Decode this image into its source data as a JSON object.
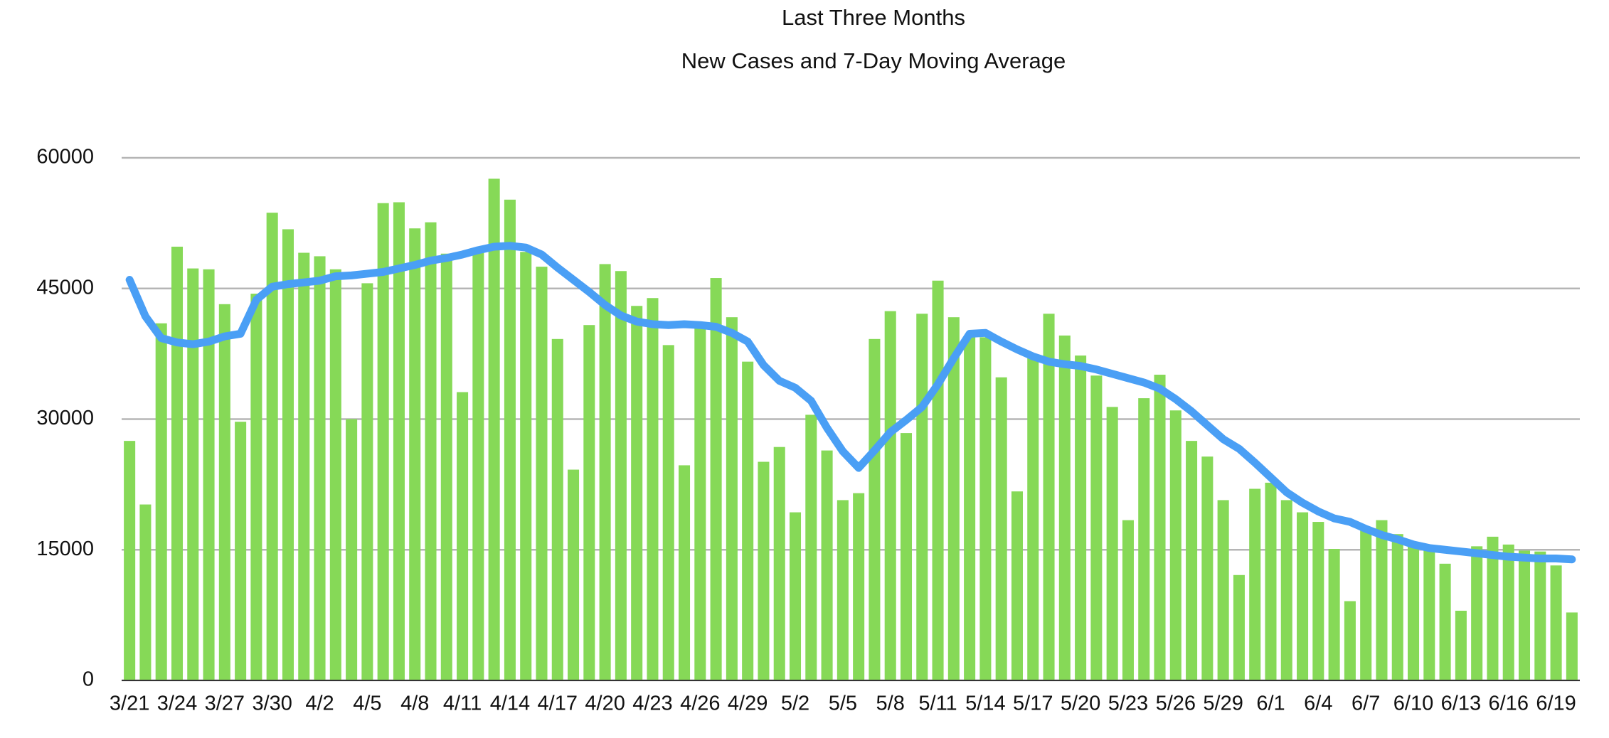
{
  "chart_data": {
    "type": "bar",
    "title": "Last Three Months",
    "subtitle": "New Cases and 7-Day Moving Average",
    "categories": [
      "3/21",
      null,
      null,
      "3/24",
      null,
      null,
      "3/27",
      null,
      null,
      "3/30",
      null,
      null,
      "4/2",
      null,
      null,
      "4/5",
      null,
      null,
      "4/8",
      null,
      null,
      "4/11",
      null,
      null,
      "4/14",
      null,
      null,
      "4/17",
      null,
      null,
      "4/20",
      null,
      null,
      "4/23",
      null,
      null,
      "4/26",
      null,
      null,
      "4/29",
      null,
      null,
      "5/2",
      null,
      null,
      "5/5",
      null,
      null,
      "5/8",
      null,
      null,
      "5/11",
      null,
      null,
      "5/14",
      null,
      null,
      "5/17",
      null,
      null,
      "5/20",
      null,
      null,
      "5/23",
      null,
      null,
      "5/26",
      null,
      null,
      "5/29",
      null,
      null,
      "6/1",
      null,
      null,
      "6/4",
      null,
      null,
      "6/7",
      null,
      null,
      "6/10",
      null,
      null,
      "6/13",
      null,
      null,
      "6/16",
      null,
      null,
      "6/19",
      null
    ],
    "series": [
      {
        "type": "bar",
        "color": "#86d957",
        "values": [
          27500,
          20200,
          41000,
          49800,
          47300,
          47200,
          43200,
          29700,
          44400,
          53700,
          51800,
          49100,
          48700,
          47200,
          30000,
          45600,
          54800,
          54900,
          51900,
          52600,
          49000,
          33100,
          49600,
          57600,
          55200,
          49200,
          47500,
          39200,
          24200,
          40800,
          47800,
          47000,
          43000,
          43900,
          38500,
          24700,
          40600,
          46200,
          41700,
          36600,
          25100,
          26800,
          19300,
          30500,
          26400,
          20700,
          21500,
          39200,
          42400,
          28400,
          42100,
          45900,
          41700,
          39500,
          39400,
          34800,
          21700,
          37000,
          42100,
          39600,
          37300,
          35000,
          31400,
          18400,
          32400,
          35100,
          31000,
          27500,
          25700,
          20700,
          12100,
          22000,
          22700,
          20700,
          19300,
          18200,
          15100,
          9100,
          17300,
          18400,
          16800,
          15800,
          15200,
          13400,
          8000,
          15400,
          16500,
          15600,
          14900,
          14800,
          13200,
          7800
        ]
      },
      {
        "type": "line",
        "color": "#4a9ff5",
        "values": [
          46000,
          41800,
          39300,
          38800,
          38600,
          38900,
          39500,
          39800,
          43700,
          45200,
          45500,
          45700,
          45900,
          46400,
          46500,
          46700,
          46900,
          47300,
          47700,
          48200,
          48500,
          48900,
          49400,
          49800,
          49900,
          49700,
          48900,
          47400,
          46000,
          44600,
          43100,
          41900,
          41200,
          40900,
          40800,
          40900,
          40800,
          40600,
          39900,
          38900,
          36200,
          34400,
          33600,
          32100,
          29000,
          26300,
          24400,
          26400,
          28500,
          29900,
          31400,
          34000,
          37000,
          39800,
          39900,
          38900,
          38000,
          37200,
          36600,
          36300,
          36100,
          35700,
          35200,
          34700,
          34200,
          33500,
          32300,
          30900,
          29300,
          27700,
          26600,
          25000,
          23300,
          21600,
          20400,
          19400,
          18600,
          18200,
          17400,
          16700,
          16200,
          15600,
          15200,
          15000,
          14800,
          14600,
          14400,
          14200,
          14100,
          14000,
          14000,
          13900
        ]
      }
    ],
    "ylim": [
      0,
      60000
    ],
    "yticks": [
      0,
      15000,
      30000,
      45000,
      60000
    ],
    "grid": true
  }
}
